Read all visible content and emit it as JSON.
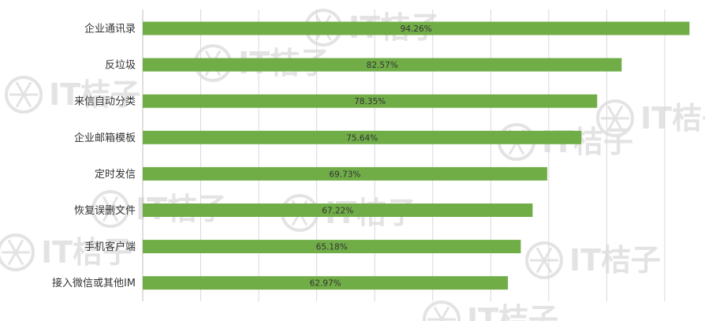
{
  "chart_data": {
    "type": "bar",
    "orientation": "horizontal",
    "categories": [
      "企业通讯录",
      "反垃圾",
      "来信自动分类",
      "企业邮箱模板",
      "定时发信",
      "恢复误删文件",
      "手机客户端",
      "接入微信或其他IM"
    ],
    "values": [
      94.26,
      82.57,
      78.35,
      75.64,
      69.73,
      67.22,
      65.18,
      62.97
    ],
    "value_labels": [
      "94.26%",
      "82.57%",
      "78.35%",
      "75.64%",
      "69.73%",
      "67.22%",
      "65.18%",
      "62.97%"
    ],
    "xlim": [
      0,
      100
    ],
    "grid": true,
    "title": "",
    "xlabel": "",
    "ylabel": "",
    "bar_color": "#70ad47",
    "grid_color": "#d9d9d9"
  },
  "watermark": {
    "text": "IT桔子",
    "color": "#e3e3e3"
  }
}
